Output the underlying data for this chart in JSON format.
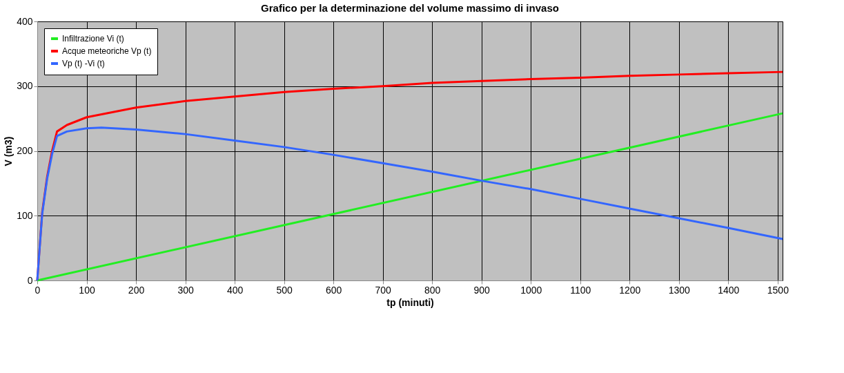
{
  "chart_data": {
    "type": "line",
    "title": "Grafico per la determinazione del volume massimo di invaso",
    "xlabel": "tp (minuti)",
    "ylabel": "V (m3)",
    "xlim": [
      0,
      1510
    ],
    "ylim": [
      0,
      400
    ],
    "xticks": [
      0,
      100,
      200,
      300,
      400,
      500,
      600,
      700,
      800,
      900,
      1000,
      1100,
      1200,
      1300,
      1400,
      1500
    ],
    "yticks": [
      0,
      100,
      200,
      300,
      400
    ],
    "grid": true,
    "legend": "top left",
    "marker": "none",
    "line_style": "solid",
    "series": [
      {
        "name": "Infiltrazione Vi (t)",
        "color": "#22ee22",
        "x": [
          0,
          1510
        ],
        "values": [
          0,
          258
        ]
      },
      {
        "name": "Acque meteoriche Vp (t)",
        "color": "#ff0000",
        "x": [
          0,
          10,
          20,
          30,
          40,
          60,
          100,
          200,
          300,
          400,
          500,
          600,
          700,
          800,
          900,
          1000,
          1100,
          1200,
          1300,
          1400,
          1510
        ],
        "values": [
          0,
          105,
          160,
          200,
          230,
          240,
          252,
          267,
          277,
          284,
          291,
          296,
          300,
          305,
          308,
          311,
          313,
          316,
          318,
          320,
          322
        ]
      },
      {
        "name": "Vp (t) -Vi (t)",
        "color": "#3366ff",
        "x": [
          0,
          10,
          20,
          30,
          40,
          60,
          100,
          130,
          200,
          300,
          400,
          500,
          600,
          700,
          800,
          900,
          1000,
          1100,
          1200,
          1300,
          1400,
          1510
        ],
        "values": [
          0,
          103,
          157,
          195,
          223,
          230,
          235,
          236,
          233,
          226,
          216,
          206,
          194,
          181,
          168,
          154,
          141,
          126,
          111,
          96,
          81,
          64
        ]
      }
    ]
  }
}
